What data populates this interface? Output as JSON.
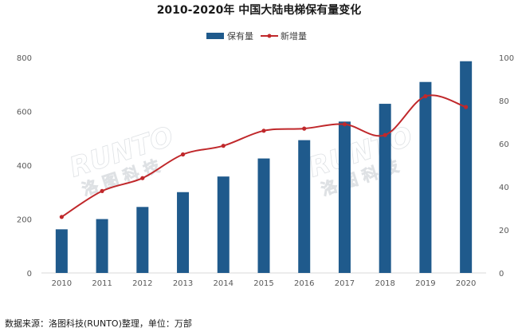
{
  "chart_data": {
    "type": "bar",
    "title": "2010-2020年 中国大陆电梯保有量变化",
    "categories": [
      "2010",
      "2011",
      "2012",
      "2013",
      "2014",
      "2015",
      "2016",
      "2017",
      "2018",
      "2019",
      "2020"
    ],
    "series": [
      {
        "name": "保有量",
        "type": "bar",
        "axis": "left",
        "values": [
          162,
          200,
          245,
          300,
          358,
          425,
          493,
          562,
          628,
          709,
          786
        ]
      },
      {
        "name": "新增量",
        "type": "line",
        "axis": "right",
        "values": [
          26,
          38,
          44,
          55,
          59,
          66,
          67,
          69,
          64,
          82,
          77
        ]
      }
    ],
    "ylim_left": [
      0,
      800
    ],
    "yticks_left": [
      "0",
      "200",
      "400",
      "600",
      "800"
    ],
    "ylim_right": [
      0,
      100
    ],
    "yticks_right": [
      "0",
      "20",
      "40",
      "60",
      "80",
      "100"
    ],
    "legend_position": "top-center",
    "grid": false,
    "colors": {
      "bar": "#1f5a8c",
      "line": "#c0282b"
    },
    "source_note": "数据来源：洛图科技(RUNTO)整理，单位：万部",
    "watermark": "RUNTO 洛图科技"
  }
}
